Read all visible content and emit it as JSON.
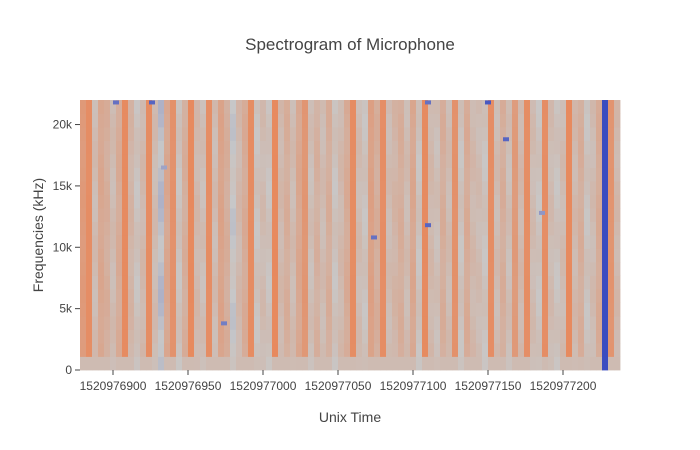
{
  "chart_data": {
    "type": "heatmap",
    "title": "Spectrogram of Microphone",
    "xlabel": "Unix Time",
    "ylabel": "Frequencies (kHz)",
    "xlim": [
      1520976878,
      1520977238
    ],
    "ylim": [
      0,
      22000
    ],
    "xticks": [
      {
        "value": 1520976900,
        "label": "1520976900"
      },
      {
        "value": 1520976950,
        "label": "1520976950"
      },
      {
        "value": 1520977000,
        "label": "1520977000"
      },
      {
        "value": 1520977050,
        "label": "1520977050"
      },
      {
        "value": 1520977100,
        "label": "1520977100"
      },
      {
        "value": 1520977150,
        "label": "1520977150"
      },
      {
        "value": 1520977200,
        "label": "1520977200"
      }
    ],
    "yticks": [
      {
        "value": 0,
        "label": "0"
      },
      {
        "value": 5000,
        "label": "5k"
      },
      {
        "value": 10000,
        "label": "10k"
      },
      {
        "value": 15000,
        "label": "15k"
      },
      {
        "value": 20000,
        "label": "20k"
      }
    ],
    "colorscale": {
      "low": "#3b4cc0",
      "mid": "#c8c8c8",
      "high": "#e8875a"
    },
    "time_bin_seconds": 4,
    "column_levels": [
      0.85,
      0.95,
      0.6,
      0.75,
      0.7,
      0.6,
      0.72,
      0.97,
      0.65,
      0.55,
      0.62,
      0.96,
      0.6,
      0.45,
      0.75,
      0.92,
      0.55,
      0.7,
      0.98,
      0.62,
      0.58,
      0.95,
      0.6,
      0.78,
      0.7,
      0.5,
      0.62,
      0.72,
      0.96,
      0.55,
      0.6,
      0.55,
      0.98,
      0.62,
      0.7,
      0.6,
      0.75,
      0.88,
      0.58,
      0.68,
      0.6,
      0.7,
      0.55,
      0.62,
      0.72,
      0.96,
      0.6,
      0.55,
      0.8,
      0.7,
      0.95,
      0.6,
      0.65,
      0.7,
      0.6,
      0.75,
      0.55,
      0.97,
      0.62,
      0.58,
      0.7,
      0.6,
      0.92,
      0.55,
      0.72,
      0.62,
      0.6,
      0.55,
      0.95,
      0.6,
      0.7,
      0.58,
      0.85,
      0.62,
      0.95,
      0.6,
      0.55,
      0.95,
      0.6,
      0.55,
      0.6,
      0.98,
      0.62,
      0.7,
      0.55,
      0.6,
      0.72,
      0.0,
      0.9,
      0.62,
      0.55
    ],
    "hotspots": [
      {
        "t": 1520976902,
        "f": 21800,
        "level": 0.15
      },
      {
        "t": 1520976926,
        "f": 21800,
        "level": 0.1
      },
      {
        "t": 1520976934,
        "f": 16500,
        "level": 0.35
      },
      {
        "t": 1520976974,
        "f": 3800,
        "level": 0.2
      },
      {
        "t": 1520977074,
        "f": 10800,
        "level": 0.15
      },
      {
        "t": 1520977110,
        "f": 11800,
        "level": 0.1
      },
      {
        "t": 1520977110,
        "f": 21800,
        "level": 0.15
      },
      {
        "t": 1520977150,
        "f": 21800,
        "level": 0.05
      },
      {
        "t": 1520977162,
        "f": 18800,
        "level": 0.1
      },
      {
        "t": 1520977186,
        "f": 12800,
        "level": 0.3
      }
    ]
  }
}
